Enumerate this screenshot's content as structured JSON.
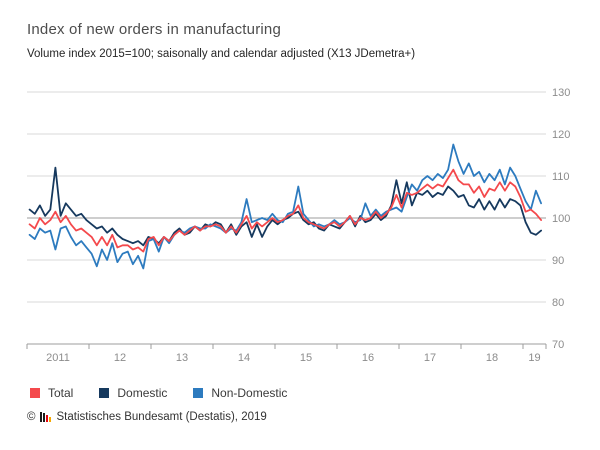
{
  "header": {
    "title": "Index of new orders in manufacturing",
    "subtitle": "Volume index 2015=100; saisonally and calendar adjusted (X13 JDemetra+)"
  },
  "footer": {
    "copyright": "©",
    "text": "Statistisches Bundesamt (Destatis), 2019"
  },
  "chart_data": {
    "type": "line",
    "title": "Index of new orders in manufacturing",
    "subtitle": "Volume index 2015=100; saisonally and calendar adjusted (X13 JDemetra+)",
    "x_start": "2011-01",
    "x_frequency": "monthly",
    "x_tick_labels": [
      "2011",
      "12",
      "13",
      "14",
      "15",
      "16",
      "17",
      "18",
      "19"
    ],
    "ylim": [
      70,
      130
    ],
    "yticks": [
      70,
      80,
      90,
      100,
      110,
      120,
      130
    ],
    "baseline": 100,
    "grid": "horizontal",
    "legend_position": "bottom",
    "colors": {
      "grid": "#d9d9d9",
      "baseline": "#9c9c9c",
      "axis": "#9c9c9c"
    },
    "series": [
      {
        "name": "Total",
        "color": "#f4494c",
        "values": [
          98.5,
          97.5,
          100,
          98.5,
          99.5,
          101.5,
          99,
          100.5,
          98.5,
          97,
          97.5,
          96.5,
          95.5,
          93.5,
          95.5,
          93.5,
          96,
          93,
          93.5,
          93.5,
          92.5,
          93,
          92,
          95,
          95.5,
          93.5,
          95.5,
          94.5,
          96,
          97,
          96,
          97,
          98,
          97,
          98,
          98,
          98.5,
          98,
          96.5,
          98,
          96.5,
          98.5,
          100.5,
          97.5,
          99,
          98,
          99,
          100,
          99,
          99.5,
          100.5,
          101,
          103,
          100,
          99,
          98.5,
          98,
          97.5,
          98.5,
          99,
          98,
          99,
          100.5,
          98.5,
          100,
          99.5,
          100,
          101.5,
          100,
          101,
          102.5,
          105.5,
          102.5,
          106,
          105.5,
          106,
          107,
          108,
          107,
          108,
          107.5,
          109.5,
          111.5,
          109,
          108,
          108,
          106,
          107.5,
          105,
          107,
          106.5,
          108.5,
          106.5,
          108.5,
          107.5,
          105,
          101.5,
          102,
          101,
          99.5
        ]
      },
      {
        "name": "Domestic",
        "color": "#16395e",
        "values": [
          102,
          101,
          103,
          100.5,
          102,
          112,
          100.5,
          103.5,
          102,
          100.5,
          101,
          99.5,
          98.5,
          97.5,
          98,
          96.5,
          97.5,
          96,
          95,
          94.5,
          94,
          94.5,
          93.5,
          95.5,
          95,
          94,
          95.5,
          94.5,
          96.5,
          97.5,
          96,
          96.5,
          98,
          97,
          98.5,
          98,
          99,
          98.5,
          96.5,
          98.5,
          96,
          98,
          99,
          95.5,
          98.5,
          95.5,
          98,
          99.5,
          98.5,
          99.5,
          100,
          101,
          101.5,
          99.5,
          98.5,
          99,
          97.5,
          97,
          98.5,
          98,
          97.5,
          99,
          100.5,
          98,
          100.5,
          99,
          99.5,
          101,
          99.5,
          100.5,
          103,
          109,
          103.5,
          108.5,
          103,
          106,
          105.5,
          106.5,
          105,
          106,
          105.5,
          107.5,
          106.5,
          105,
          105.5,
          103,
          102.5,
          104.5,
          102,
          104,
          102,
          104.5,
          102.5,
          104.5,
          104,
          103,
          99,
          96.5,
          96,
          97
        ]
      },
      {
        "name": "Non-Domestic",
        "color": "#2d7bbf",
        "values": [
          96,
          95,
          97.5,
          96.5,
          97,
          92.5,
          97.5,
          98,
          95.5,
          93.5,
          94.5,
          93,
          91.5,
          88.5,
          92.5,
          90,
          94,
          89.5,
          91.5,
          92,
          89,
          91,
          88,
          94.5,
          95,
          92,
          95.5,
          94,
          96,
          97,
          96.5,
          97.5,
          98,
          97.5,
          97.5,
          98.5,
          98,
          97.5,
          96.5,
          97.5,
          97,
          99,
          104.5,
          99,
          99.5,
          100,
          99.5,
          101,
          99.5,
          99,
          101,
          101.5,
          107.5,
          101,
          99.5,
          98,
          98.5,
          98,
          98.5,
          99.5,
          98.5,
          99,
          100,
          99,
          99.5,
          103.5,
          100.5,
          102,
          100.5,
          101.5,
          102,
          102.5,
          101.5,
          105,
          108,
          106.5,
          109,
          110,
          109,
          110.5,
          109.5,
          111.5,
          117.5,
          113.5,
          110.5,
          113,
          110,
          111,
          108.5,
          110.5,
          109,
          111.5,
          108,
          112,
          110,
          107,
          104,
          102,
          106.5,
          103.5
        ]
      }
    ]
  }
}
